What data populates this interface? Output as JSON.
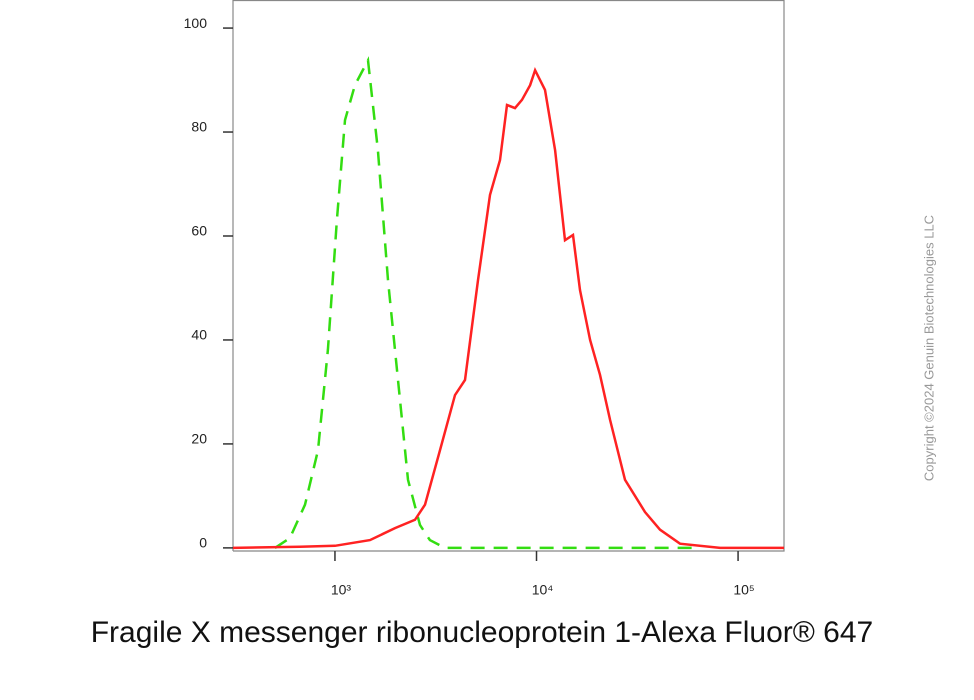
{
  "chart_data": {
    "type": "line",
    "title": "Fragile X messenger ribonucleoprotein 1-Alexa Fluor® 647",
    "watermark": "Copyright ©2024 Genuin Biotechnologies LLC",
    "xscale": "log",
    "xlim": [
      312,
      169000
    ],
    "xticks": [
      {
        "value": 1000,
        "label": "10³"
      },
      {
        "value": 10000,
        "label": "10⁴"
      },
      {
        "value": 100000,
        "label": "10⁵"
      }
    ],
    "ylim": [
      -0.6,
      105.4
    ],
    "yticks": [
      0,
      20,
      40,
      60,
      80,
      100
    ],
    "series": [
      {
        "color": "#33dd11",
        "line_style": "dashed",
        "x": [
          504,
          598,
          710,
          824,
          923,
          1023,
          1122,
          1256,
          1458,
          1634,
          1833,
          2055,
          2303,
          2642,
          2960,
          3516,
          64700
        ],
        "values": [
          0,
          1.9,
          8.3,
          18.8,
          38.1,
          63.1,
          82.3,
          89.0,
          93.8,
          76.5,
          51.5,
          32.3,
          13.1,
          4.4,
          1.5,
          0,
          0
        ]
      },
      {
        "color": "#ff2222",
        "line_style": "solid",
        "x": [
          312,
          670,
          1000,
          1492,
          1985,
          2494,
          2797,
          3319,
          3943,
          4416,
          5126,
          5877,
          6592,
          7142,
          7818,
          8474,
          9290,
          9840,
          11020,
          12360,
          13840,
          15180,
          16440,
          18440,
          20650,
          23170,
          27490,
          34530,
          41000,
          51520,
          81400,
          169000
        ],
        "values": [
          0,
          0.2,
          0.4,
          1.5,
          3.8,
          5.4,
          8.3,
          18.8,
          29.4,
          32.3,
          51.5,
          67.9,
          74.6,
          85.2,
          84.6,
          86.2,
          89.0,
          91.9,
          88.1,
          76.5,
          59.2,
          60.2,
          49.6,
          40.0,
          33.3,
          24.6,
          13.1,
          6.9,
          3.5,
          0.8,
          0,
          0
        ]
      }
    ]
  }
}
